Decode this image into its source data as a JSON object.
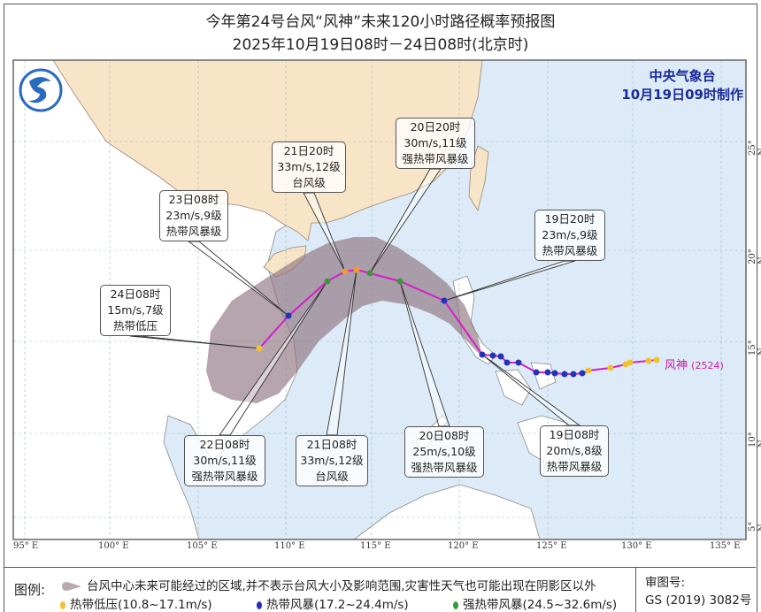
{
  "header": {
    "title": "今年第24号台风“风神”未来120小时路径概率预报图",
    "subtitle": "2025年10月19日08时－24日08时(北京时)"
  },
  "agency": {
    "name": "中央气象台",
    "issued": "10月19日09时制作"
  },
  "typhoon_label": {
    "name": "风神",
    "code": "(2524)"
  },
  "axes": {
    "longitudes": [
      "95° E",
      "100° E",
      "105° E",
      "110° E",
      "115° E",
      "120° E",
      "125° E",
      "130° E",
      "135° E"
    ],
    "latitudes": [
      "25° N",
      "20° N",
      "15° N",
      "10° N",
      "5° N"
    ]
  },
  "annotations": [
    {
      "id": "19-08",
      "time": "19日08时",
      "wind": "20m/s,8级",
      "level": "热带风暴级"
    },
    {
      "id": "19-20",
      "time": "19日20时",
      "wind": "23m/s,9级",
      "level": "热带风暴级"
    },
    {
      "id": "20-08",
      "time": "20日08时",
      "wind": "25m/s,10级",
      "level": "强热带风暴级"
    },
    {
      "id": "20-20",
      "time": "20日20时",
      "wind": "30m/s,11级",
      "level": "强热带风暴级"
    },
    {
      "id": "21-08",
      "time": "21日08时",
      "wind": "33m/s,12级",
      "level": "台风级"
    },
    {
      "id": "21-20",
      "time": "21日20时",
      "wind": "33m/s,12级",
      "level": "台风级"
    },
    {
      "id": "22-08",
      "time": "22日08时",
      "wind": "30m/s,11级",
      "level": "强热带风暴级"
    },
    {
      "id": "23-08",
      "time": "23日08时",
      "wind": "23m/s,9级",
      "level": "热带风暴级"
    },
    {
      "id": "24-08",
      "time": "24日08时",
      "wind": "15m/s,7级",
      "level": "热带低压"
    }
  ],
  "colors": {
    "track_line": "#d21fc8",
    "cone": "#8a6e7a",
    "tropical_depression": "#f2c12e",
    "tropical_storm": "#2233b8",
    "severe_tropical_storm": "#3a9a3a",
    "typhoon": "#f29a30",
    "land_china": "#f8e4c6",
    "sea": "#dcebf7",
    "agency_text": "#1a2a9a"
  },
  "legend": {
    "label": "图例:",
    "cone_desc": "台风中心未来可能经过的区域,并不表示台风大小及影响范围,灾害性天气也可能出现在阴影区以外",
    "items": [
      {
        "name": "热带低压(10.8~17.1m/s)",
        "color_key": "tropical_depression"
      },
      {
        "name": "热带风暴(17.2~24.4m/s)",
        "color_key": "tropical_storm"
      },
      {
        "name": "强热带风暴(24.5~32.6m/s)",
        "color_key": "severe_tropical_storm"
      }
    ],
    "approval_label": "审图号:",
    "approval_number": "GS (2019) 3082号"
  }
}
